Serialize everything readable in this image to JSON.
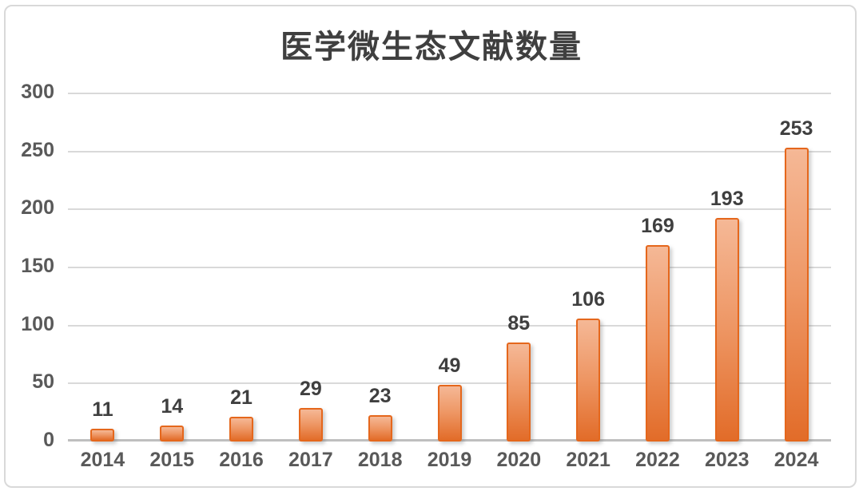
{
  "title": "医学微生态文献数量",
  "chart_data": {
    "type": "bar",
    "title": "医学微生态文献数量",
    "categories": [
      "2014",
      "2015",
      "2016",
      "2017",
      "2018",
      "2019",
      "2020",
      "2021",
      "2022",
      "2023",
      "2024"
    ],
    "values": [
      11,
      14,
      21,
      29,
      23,
      49,
      85,
      106,
      169,
      193,
      253
    ],
    "xlabel": "",
    "ylabel": "",
    "ylim": [
      0,
      300
    ],
    "yticks": [
      0,
      50,
      100,
      150,
      200,
      250,
      300
    ],
    "grid": true,
    "legend": false,
    "colors": {
      "bar_gradient_top": "#F5B896",
      "bar_gradient_mid": "#EE9765",
      "bar_gradient_bottom": "#E26C29",
      "bar_border": "#E5671C",
      "title_text": "#3F3F3F",
      "value_label_text": "#3F3F3F",
      "axis_label_text": "#595959",
      "gridline": "#D9D9D9",
      "axis_line": "#BFBFBF",
      "frame_border": "#D9D9D9",
      "background": "#FFFFFF"
    }
  }
}
